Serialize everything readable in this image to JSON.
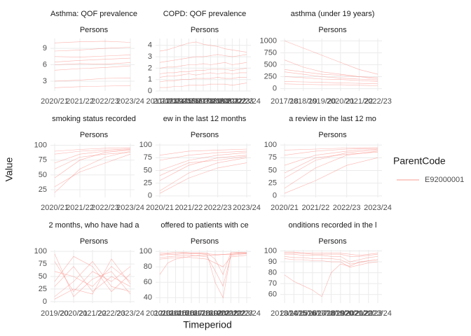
{
  "x_label": "Timeperiod",
  "y_label": "Value",
  "legend": {
    "title": "ParentCode",
    "entries": [
      {
        "name": "E92000001",
        "color": "#F8766D"
      }
    ]
  },
  "chart_data": [
    {
      "type": "line",
      "title": "Asthma: QOF prevalence",
      "subtitle": "Persons",
      "color": "#F8766D",
      "categories": [
        "2020/21",
        "2021/22",
        "2022/23",
        "2023/24"
      ],
      "ylim": [
        1.2,
        10.8
      ],
      "yticks": [
        3,
        6,
        9
      ],
      "lines": [
        [
          6.5,
          6.8,
          7,
          7.2
        ],
        [
          5,
          5.3,
          5.5,
          5.8
        ],
        [
          8.5,
          8.7,
          9,
          9.2
        ],
        [
          3,
          3.2,
          3.5,
          3.6
        ],
        [
          7.5,
          7.4,
          7.6,
          7.8
        ],
        [
          10,
          10.2,
          10.3,
          10.1
        ],
        [
          1.8,
          2,
          2.1,
          2.2
        ],
        [
          6,
          6.2,
          6.1,
          6.4
        ]
      ]
    },
    {
      "type": "line",
      "title": "COPD: QOF prevalence",
      "subtitle": "Persons",
      "color": "#F8766D",
      "categories": [
        "2011/12",
        "2012/13",
        "2013/14",
        "2014/15",
        "2015/16",
        "2016/17",
        "2017/18",
        "2018/19",
        "2019/20",
        "2020/21",
        "2021/22",
        "2022/23",
        "2023/24"
      ],
      "ylim": [
        0,
        4.6
      ],
      "yticks": [
        0,
        1,
        2,
        3,
        4
      ],
      "lines": [
        [
          1.5,
          1.6,
          1.6,
          1.7,
          1.7,
          1.8,
          1.8,
          1.9,
          1.9,
          1.9,
          1.8,
          1.9,
          2
        ],
        [
          2.5,
          2.6,
          2.7,
          2.8,
          2.9,
          3,
          3,
          3.1,
          3.2,
          3.1,
          3,
          3.1,
          3.2
        ],
        [
          0.8,
          0.9,
          0.9,
          1,
          1,
          1.1,
          1.1,
          1.1,
          1.2,
          1.1,
          1.1,
          1.2,
          1.2
        ],
        [
          3.5,
          3.6,
          3.8,
          4,
          4.2,
          4.3,
          4.1,
          4,
          3.9,
          3.7,
          3.6,
          3.5,
          3.4
        ],
        [
          2,
          2.1,
          2.1,
          2.2,
          2.3,
          2.3,
          2.4,
          2.3,
          2.4,
          2.5,
          2.3,
          2.4,
          2.5
        ],
        [
          0.3,
          0.3,
          0.4,
          0.4,
          0.5,
          0.5,
          0.5,
          0.6,
          0.6,
          0.6,
          0.5,
          0.6,
          0.7
        ],
        [
          1.2,
          1.3,
          1.3,
          1.4,
          1.5,
          1.4,
          1.5,
          1.6,
          1.5,
          1.6,
          1.5,
          1.6,
          1.6
        ]
      ]
    },
    {
      "type": "line",
      "title": "asthma (under 19 years)",
      "subtitle": "Persons",
      "color": "#F8766D",
      "categories": [
        "2017/18",
        "2018/19",
        "2019/20",
        "2020/21",
        "2021/22",
        "2022/23"
      ],
      "ylim": [
        -50,
        1050
      ],
      "yticks": [
        0,
        250,
        500,
        750,
        1000
      ],
      "lines": [
        [
          1000,
          850,
          700,
          550,
          400,
          300
        ],
        [
          600,
          450,
          350,
          300,
          250,
          200
        ],
        [
          350,
          300,
          250,
          220,
          200,
          180
        ],
        [
          250,
          230,
          200,
          190,
          170,
          150
        ],
        [
          150,
          140,
          130,
          120,
          110,
          100
        ],
        [
          400,
          350,
          300,
          280,
          250,
          230
        ],
        [
          100,
          90,
          80,
          80,
          70,
          60
        ]
      ]
    },
    {
      "type": "line",
      "title": "smoking status recorded",
      "subtitle": "Persons",
      "color": "#F8766D",
      "categories": [
        "2020/21",
        "2021/22",
        "2022/23",
        "2023/24"
      ],
      "ylim": [
        12,
        103
      ],
      "yticks": [
        25,
        50,
        75,
        100
      ],
      "lines": [
        [
          20,
          60,
          80,
          90
        ],
        [
          45,
          75,
          88,
          92
        ],
        [
          70,
          85,
          90,
          93
        ],
        [
          85,
          90,
          92,
          94
        ],
        [
          30,
          55,
          70,
          85
        ],
        [
          60,
          80,
          85,
          88
        ],
        [
          90,
          93,
          95,
          96
        ]
      ]
    },
    {
      "type": "line",
      "title": "ew in the last 12 months",
      "subtitle": "Persons",
      "color": "#F8766D",
      "categories": [
        "2020/21",
        "2021/22",
        "2022/23",
        "2023/24"
      ],
      "ylim": [
        -3,
        103
      ],
      "yticks": [
        0,
        25,
        50,
        75,
        100
      ],
      "lines": [
        [
          10,
          45,
          65,
          75
        ],
        [
          30,
          60,
          75,
          80
        ],
        [
          50,
          70,
          80,
          85
        ],
        [
          70,
          80,
          85,
          88
        ],
        [
          5,
          35,
          55,
          65
        ],
        [
          40,
          65,
          70,
          78
        ],
        [
          80,
          88,
          90,
          92
        ]
      ]
    },
    {
      "type": "line",
      "title": "a review in the last 12 mo",
      "subtitle": "Persons",
      "color": "#F8766D",
      "categories": [
        "2020/21",
        "2021/22",
        "2022/23",
        "2023/24"
      ],
      "ylim": [
        -3,
        103
      ],
      "yticks": [
        0,
        25,
        50,
        75,
        100
      ],
      "lines": [
        [
          15,
          55,
          80,
          88
        ],
        [
          35,
          70,
          85,
          90
        ],
        [
          60,
          80,
          88,
          92
        ],
        [
          80,
          88,
          92,
          93
        ],
        [
          5,
          30,
          60,
          75
        ],
        [
          45,
          75,
          82,
          86
        ],
        [
          90,
          92,
          94,
          95
        ]
      ]
    },
    {
      "type": "line",
      "title": "2 months, who have had a",
      "subtitle": "Persons",
      "color": "#F8766D",
      "categories": [
        "2019/20",
        "2020/21",
        "2021/22",
        "2022/23",
        "2023/24"
      ],
      "ylim": [
        -3,
        103
      ],
      "yticks": [
        0,
        25,
        50,
        75,
        100
      ],
      "lines": [
        [
          80,
          20,
          60,
          40,
          70
        ],
        [
          30,
          70,
          20,
          50,
          30
        ],
        [
          10,
          40,
          80,
          30,
          20
        ],
        [
          60,
          50,
          30,
          70,
          40
        ],
        [
          95,
          10,
          45,
          60,
          15
        ],
        [
          40,
          90,
          70,
          20,
          55
        ],
        [
          5,
          25,
          15,
          85,
          35
        ]
      ]
    },
    {
      "type": "line",
      "title": "offered to patients with ce",
      "subtitle": "Persons",
      "color": "#F8766D",
      "categories": [
        "2012/13",
        "2013/14",
        "2014/15",
        "2015/16",
        "2016/17",
        "2017/18",
        "2018/19",
        "2019/20",
        "2020/21",
        "2021/22",
        "2022/23",
        "2023/24"
      ],
      "ylim": [
        33,
        102
      ],
      "yticks": [
        40,
        60,
        80,
        100
      ],
      "lines": [
        [
          95,
          96,
          96,
          97,
          97,
          97,
          96,
          60,
          40,
          97,
          98,
          98
        ],
        [
          92,
          93,
          94,
          95,
          95,
          94,
          93,
          75,
          55,
          95,
          96,
          97
        ],
        [
          98,
          98,
          99,
          99,
          98,
          98,
          98,
          90,
          70,
          99,
          99,
          99
        ],
        [
          90,
          91,
          92,
          93,
          92,
          91,
          90,
          85,
          80,
          93,
          94,
          95
        ],
        [
          70,
          85,
          90,
          92,
          94,
          95,
          95,
          95,
          96,
          96,
          97,
          97
        ],
        [
          96,
          97,
          97,
          98,
          98,
          98,
          97,
          96,
          96,
          97,
          98,
          98
        ]
      ]
    },
    {
      "type": "line",
      "title": "onditions recorded in the l",
      "subtitle": "Persons",
      "color": "#F8766D",
      "categories": [
        "2013/14",
        "2014/15",
        "2015/16",
        "2016/17",
        "2017/18",
        "2018/19",
        "2019/20",
        "2020/21",
        "2021/22",
        "2022/23",
        "2023/24"
      ],
      "ylim": [
        52,
        101
      ],
      "yticks": [
        60,
        70,
        80,
        90,
        100
      ],
      "lines": [
        [
          97,
          97,
          96,
          96,
          96,
          95,
          95,
          90,
          92,
          94,
          95
        ],
        [
          95,
          94,
          94,
          93,
          93,
          93,
          92,
          88,
          89,
          91,
          92
        ],
        [
          98,
          98,
          98,
          97,
          97,
          97,
          97,
          95,
          95,
          96,
          97
        ],
        [
          78,
          72,
          68,
          64,
          58,
          80,
          88,
          86,
          90,
          91,
          92
        ],
        [
          93,
          92,
          92,
          91,
          91,
          90,
          90,
          85,
          87,
          89,
          90
        ],
        [
          99,
          99,
          98,
          98,
          98,
          98,
          98,
          97,
          96,
          97,
          98
        ]
      ]
    }
  ]
}
